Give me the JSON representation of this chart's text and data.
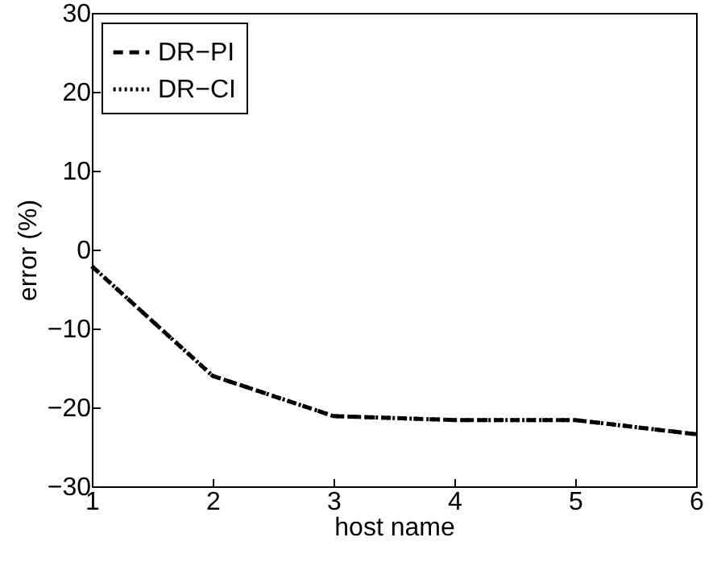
{
  "chart_data": {
    "type": "line",
    "xlabel": "host name",
    "ylabel": "error (%)",
    "x": [
      1,
      2,
      3,
      4,
      5,
      6
    ],
    "series": [
      {
        "name": "DR−PI",
        "color": "#000000",
        "line_style": "dashed",
        "values": [
          -2.1,
          -16.0,
          -21.1,
          -21.6,
          -21.6,
          -23.4
        ]
      },
      {
        "name": "DR−CI",
        "color": "#000000",
        "line_style": "dotted",
        "values": [
          -2.1,
          -16.0,
          -21.1,
          -21.6,
          -21.6,
          -23.4
        ]
      }
    ],
    "xlim": [
      1,
      6
    ],
    "xticks": [
      1,
      2,
      3,
      4,
      5,
      6
    ],
    "ylim": [
      -30,
      30
    ],
    "yticks": [
      -30,
      -20,
      -10,
      0,
      10,
      20,
      30
    ],
    "grid": false,
    "legend": "top left",
    "marker": "none"
  }
}
